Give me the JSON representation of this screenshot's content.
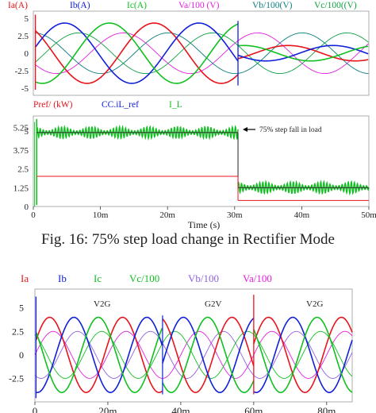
{
  "caption": "Fig. 16: 75% step load change in Rectifier Mode",
  "colors": {
    "red": "#e8141c",
    "blue": "#1020d8",
    "green": "#10c020",
    "magenta": "#e020e0",
    "teal": "#108080",
    "cyan": "#20c8c0",
    "darkgreen": "#10a040",
    "purple": "#9060e0",
    "axis": "#333333",
    "grid": "#dddddd"
  },
  "chart_data": [
    {
      "type": "line",
      "legend": [
        {
          "name": "Ia(A)",
          "color": "#e8141c"
        },
        {
          "name": "Ib(A)",
          "color": "#1020d8"
        },
        {
          "name": "Ic(A)",
          "color": "#10c020"
        },
        {
          "name": "Va/100 (V)",
          "color": "#e020e0"
        },
        {
          "name": "Vb/100(V)",
          "color": "#108080"
        },
        {
          "name": "Vc/100((V)",
          "color": "#10a040"
        }
      ],
      "y_ticks": [
        "5",
        "2.5",
        "0",
        "-2.5",
        "-5"
      ],
      "ylim": [
        -6,
        6
      ],
      "xlim": [
        0,
        50
      ],
      "x_unit": "ms",
      "current_amplitude_before": 4.3,
      "current_amplitude_after": 1.1,
      "voltage_amplitude": 2.9,
      "step_time": 30.5,
      "frequency_hz": 50
    },
    {
      "type": "line",
      "legend": [
        {
          "name": "Pref/ (kW)",
          "color": "#e8141c"
        },
        {
          "name": "CC.iL_ref",
          "color": "#1020d8"
        },
        {
          "name": "I_L",
          "color": "#10c020"
        }
      ],
      "y_ticks": [
        "5.25",
        "5",
        "3.75",
        "2.5",
        "1.25",
        "0"
      ],
      "ylim": [
        0,
        6
      ],
      "x_ticks": [
        "0",
        "10m",
        "20m",
        "30m",
        "40m",
        "50m"
      ],
      "xlabel": "Time (s)",
      "xlim": [
        0,
        50
      ],
      "annotation": "75% step fall in load",
      "series_levels": {
        "Pref_before": 2.0,
        "Pref_after": 0.4,
        "IL_before": 4.9,
        "IL_after": 1.25,
        "ripple": 0.4
      },
      "step_time": 30.5
    },
    {
      "type": "line",
      "legend": [
        {
          "name": "Ia",
          "color": "#e8141c"
        },
        {
          "name": "Ib",
          "color": "#1020d8"
        },
        {
          "name": "Ic",
          "color": "#10c020"
        },
        {
          "name": "Vc/100",
          "color": "#10c020"
        },
        {
          "name": "Vb/100",
          "color": "#9060e0"
        },
        {
          "name": "Va/100",
          "color": "#e020e0"
        }
      ],
      "y_ticks": [
        "5",
        "2.5",
        "0",
        "-2.5"
      ],
      "ylim": [
        -5,
        7
      ],
      "x_ticks": [
        "0",
        "20m",
        "40m",
        "60m",
        "80m"
      ],
      "xlim": [
        0,
        87
      ],
      "modes": [
        "V2G",
        "G2V",
        "V2G"
      ],
      "mode_switch_times": [
        35,
        60
      ],
      "current_amplitude": 4.0,
      "voltage_amplitude": 2.5,
      "frequency_hz": 50
    }
  ]
}
